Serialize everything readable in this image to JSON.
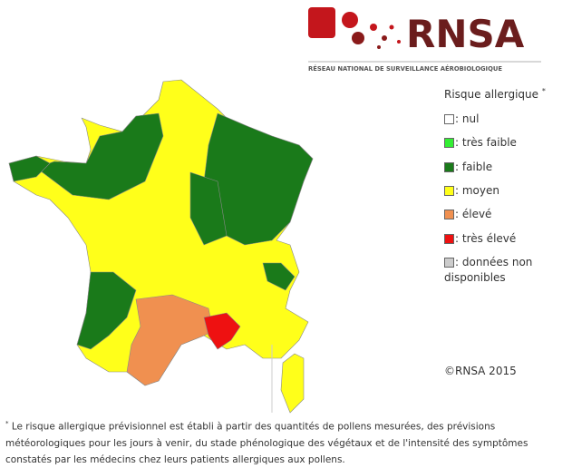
{
  "logo": {
    "name": "RNSA",
    "subtitle": "RÉSEAU NATIONAL DE SURVEILLANCE AÉROBIOLOGIQUE"
  },
  "legend": {
    "title": "Risque allergique",
    "note_mark": "*",
    "items": [
      {
        "label": ": nul",
        "color": "#ffffff"
      },
      {
        "label": ": très faible",
        "color": "#33ee33"
      },
      {
        "label": ": faible",
        "color": "#1a7a1a"
      },
      {
        "label": ": moyen",
        "color": "#ffff1a"
      },
      {
        "label": ": élevé",
        "color": "#f09050"
      },
      {
        "label": ": très élevé",
        "color": "#ee1111"
      },
      {
        "label": ": données non disponibles",
        "color": "#cccccc"
      }
    ]
  },
  "copyright": "©RNSA 2015",
  "footnote": {
    "mark": "*",
    "text": "Le risque allergique prévisionnel est établi à partir des quantités de pollens mesurées, des prévisions météorologiques pour les jours à venir, du stade phénologique des végétaux et de l'intensité des symptômes constatés par les médecins chez leurs patients allergiques aux pollens."
  }
}
